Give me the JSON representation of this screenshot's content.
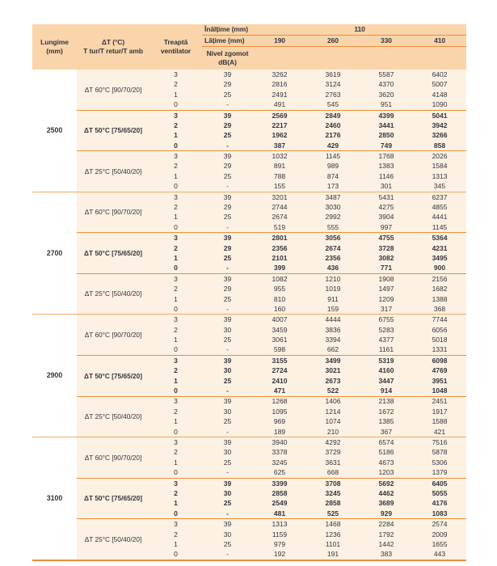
{
  "colors": {
    "header_bg": "#FAD5AB",
    "body_bg": "#FCF1E2",
    "line_orange": "#EA8F3C",
    "group_line_orange": "#F2AB66",
    "text": "#34343E"
  },
  "header": {
    "height_label": "Înălțime (mm)",
    "height_value": "110",
    "width_label": "Lățime (mm)",
    "width_values": [
      "190",
      "260",
      "330",
      "410"
    ],
    "col_length_1": "Lungime",
    "col_length_2": "(mm)",
    "col_delta_1": "ΔT (°C)",
    "col_delta_2": "T tur/T retur/T amb",
    "col_step_1": "Treaptă",
    "col_step_2": "ventilator",
    "col_noise_1": "Nivel zgomot",
    "col_noise_2": "dB(A)"
  },
  "groups": [
    {
      "length": "2500",
      "subgroups": [
        {
          "label": "ΔT 60°C [90/70/20]",
          "bold": false,
          "rows": [
            {
              "step": "3",
              "noise": "39",
              "values": [
                "3262",
                "3619",
                "5587",
                "6402"
              ]
            },
            {
              "step": "2",
              "noise": "29",
              "values": [
                "2816",
                "3124",
                "4370",
                "5007"
              ]
            },
            {
              "step": "1",
              "noise": "25",
              "values": [
                "2491",
                "2763",
                "3620",
                "4148"
              ]
            },
            {
              "step": "0",
              "noise": "-",
              "values": [
                "491",
                "545",
                "951",
                "1090"
              ]
            }
          ]
        },
        {
          "label": "ΔT 50°C [75/65/20]",
          "bold": true,
          "rows": [
            {
              "step": "3",
              "noise": "39",
              "values": [
                "2569",
                "2849",
                "4399",
                "5041"
              ]
            },
            {
              "step": "2",
              "noise": "29",
              "values": [
                "2217",
                "2460",
                "3441",
                "3942"
              ]
            },
            {
              "step": "1",
              "noise": "25",
              "values": [
                "1962",
                "2176",
                "2850",
                "3266"
              ]
            },
            {
              "step": "0",
              "noise": "-",
              "values": [
                "387",
                "429",
                "749",
                "858"
              ]
            }
          ]
        },
        {
          "label": "ΔT 25°C [50/40/20]",
          "bold": false,
          "rows": [
            {
              "step": "3",
              "noise": "39",
              "values": [
                "1032",
                "1145",
                "1768",
                "2026"
              ]
            },
            {
              "step": "2",
              "noise": "29",
              "values": [
                "891",
                "989",
                "1383",
                "1584"
              ]
            },
            {
              "step": "1",
              "noise": "25",
              "values": [
                "788",
                "874",
                "1146",
                "1313"
              ]
            },
            {
              "step": "0",
              "noise": "-",
              "values": [
                "155",
                "173",
                "301",
                "345"
              ]
            }
          ]
        }
      ]
    },
    {
      "length": "2700",
      "subgroups": [
        {
          "label": "ΔT 60°C [90/70/20]",
          "bold": false,
          "rows": [
            {
              "step": "3",
              "noise": "39",
              "values": [
                "3201",
                "3487",
                "5431",
                "6237"
              ]
            },
            {
              "step": "2",
              "noise": "29",
              "values": [
                "2744",
                "3030",
                "4275",
                "4855"
              ]
            },
            {
              "step": "1",
              "noise": "25",
              "values": [
                "2674",
                "2992",
                "3904",
                "4441"
              ]
            },
            {
              "step": "0",
              "noise": "-",
              "values": [
                "519",
                "555",
                "997",
                "1145"
              ]
            }
          ]
        },
        {
          "label": "ΔT 50°C [75/65/20]",
          "bold": true,
          "rows": [
            {
              "step": "3",
              "noise": "39",
              "values": [
                "2801",
                "3056",
                "4755",
                "5364"
              ]
            },
            {
              "step": "2",
              "noise": "29",
              "values": [
                "2356",
                "2674",
                "3728",
                "4231"
              ]
            },
            {
              "step": "1",
              "noise": "25",
              "values": [
                "2101",
                "2356",
                "3082",
                "3495"
              ]
            },
            {
              "step": "0",
              "noise": "-",
              "values": [
                "399",
                "436",
                "771",
                "900"
              ]
            }
          ]
        },
        {
          "label": "ΔT 25°C [50/40/20]",
          "bold": false,
          "rows": [
            {
              "step": "3",
              "noise": "39",
              "values": [
                "1082",
                "1210",
                "1908",
                "2156"
              ]
            },
            {
              "step": "2",
              "noise": "29",
              "values": [
                "955",
                "1019",
                "1497",
                "1682"
              ]
            },
            {
              "step": "1",
              "noise": "25",
              "values": [
                "810",
                "911",
                "1209",
                "1388"
              ]
            },
            {
              "step": "0",
              "noise": "-",
              "values": [
                "160",
                "159",
                "317",
                "368"
              ]
            }
          ]
        }
      ]
    },
    {
      "length": "2900",
      "subgroups": [
        {
          "label": "ΔT 60°C [90/70/20]",
          "bold": false,
          "rows": [
            {
              "step": "3",
              "noise": "39",
              "values": [
                "4007",
                "4444",
                "6755",
                "7744"
              ]
            },
            {
              "step": "2",
              "noise": "30",
              "values": [
                "3459",
                "3836",
                "5283",
                "6056"
              ]
            },
            {
              "step": "1",
              "noise": "25",
              "values": [
                "3061",
                "3394",
                "4377",
                "5018"
              ]
            },
            {
              "step": "0",
              "noise": "-",
              "values": [
                "598",
                "662",
                "1161",
                "1331"
              ]
            }
          ]
        },
        {
          "label": "ΔT 50°C [75/65/20]",
          "bold": true,
          "rows": [
            {
              "step": "3",
              "noise": "39",
              "values": [
                "3155",
                "3499",
                "5319",
                "6098"
              ]
            },
            {
              "step": "2",
              "noise": "30",
              "values": [
                "2724",
                "3021",
                "4160",
                "4769"
              ]
            },
            {
              "step": "1",
              "noise": "25",
              "values": [
                "2410",
                "2673",
                "3447",
                "3951"
              ]
            },
            {
              "step": "0",
              "noise": "-",
              "values": [
                "471",
                "522",
                "914",
                "1048"
              ]
            }
          ]
        },
        {
          "label": "ΔT 25°C [50/40/20]",
          "bold": false,
          "rows": [
            {
              "step": "3",
              "noise": "39",
              "values": [
                "1268",
                "1406",
                "2138",
                "2451"
              ]
            },
            {
              "step": "2",
              "noise": "30",
              "values": [
                "1095",
                "1214",
                "1672",
                "1917"
              ]
            },
            {
              "step": "1",
              "noise": "25",
              "values": [
                "969",
                "1074",
                "1385",
                "1588"
              ]
            },
            {
              "step": "0",
              "noise": "-",
              "values": [
                "189",
                "210",
                "367",
                "421"
              ]
            }
          ]
        }
      ]
    },
    {
      "length": "3100",
      "subgroups": [
        {
          "label": "ΔT 60°C [90/70/20]",
          "bold": false,
          "rows": [
            {
              "step": "3",
              "noise": "39",
              "values": [
                "3940",
                "4292",
                "6574",
                "7516"
              ]
            },
            {
              "step": "2",
              "noise": "30",
              "values": [
                "3378",
                "3729",
                "5186",
                "5878"
              ]
            },
            {
              "step": "1",
              "noise": "25",
              "values": [
                "3245",
                "3631",
                "4673",
                "5306"
              ]
            },
            {
              "step": "0",
              "noise": "-",
              "values": [
                "625",
                "668",
                "1203",
                "1379"
              ]
            }
          ]
        },
        {
          "label": "ΔT 50°C [75/65/20]",
          "bold": true,
          "rows": [
            {
              "step": "3",
              "noise": "39",
              "values": [
                "3399",
                "3708",
                "5692",
                "6405"
              ]
            },
            {
              "step": "2",
              "noise": "30",
              "values": [
                "2858",
                "3245",
                "4462",
                "5055"
              ]
            },
            {
              "step": "1",
              "noise": "25",
              "values": [
                "2549",
                "2858",
                "3689",
                "4176"
              ]
            },
            {
              "step": "0",
              "noise": "-",
              "values": [
                "481",
                "525",
                "929",
                "1083"
              ]
            }
          ]
        },
        {
          "label": "ΔT 25°C [50/40/20]",
          "bold": false,
          "rows": [
            {
              "step": "3",
              "noise": "39",
              "values": [
                "1313",
                "1468",
                "2284",
                "2574"
              ]
            },
            {
              "step": "2",
              "noise": "30",
              "values": [
                "1159",
                "1236",
                "1792",
                "2009"
              ]
            },
            {
              "step": "1",
              "noise": "25",
              "values": [
                "979",
                "1101",
                "1442",
                "1655"
              ]
            },
            {
              "step": "0",
              "noise": "-",
              "values": [
                "192",
                "191",
                "383",
                "443"
              ]
            }
          ]
        }
      ]
    }
  ]
}
